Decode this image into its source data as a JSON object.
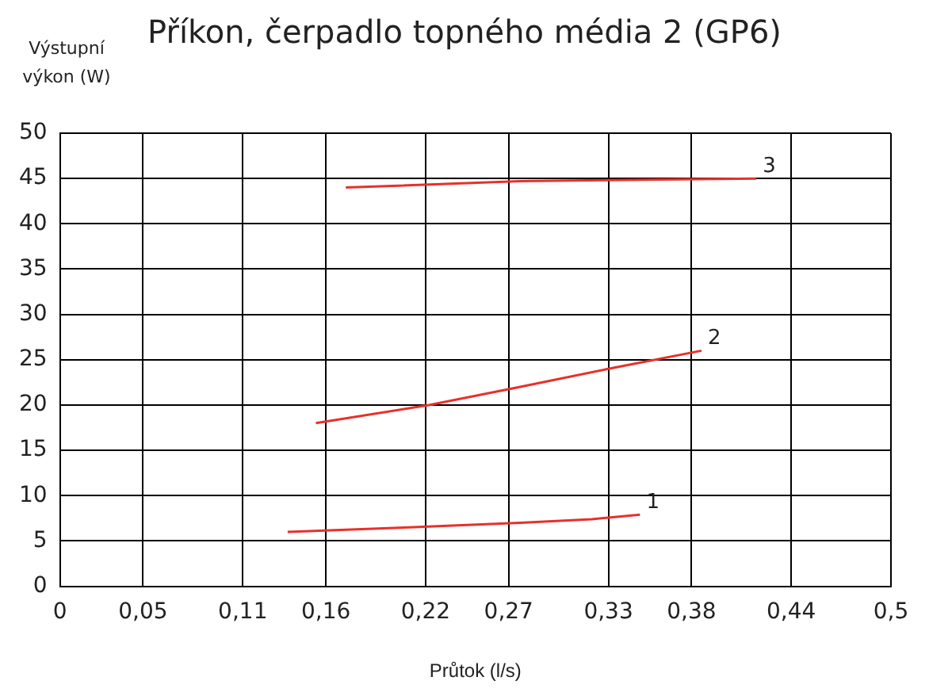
{
  "chart_data": {
    "type": "line",
    "title": "Příkon, čerpadlo topného média 2 (GP6)",
    "xlabel": "Průtok (l/s)",
    "ylabel": "Výstupní výkon (W)",
    "xlim": [
      0,
      0.5
    ],
    "xticks": [
      0,
      {
        "value": 0.05,
        "label": "0,05"
      },
      {
        "value": 0.11,
        "label": "0,11"
      },
      {
        "value": 0.16,
        "label": "0,16"
      },
      {
        "value": 0.22,
        "label": "0,22"
      },
      {
        "value": 0.27,
        "label": "0,27"
      },
      {
        "value": 0.33,
        "label": "0,33"
      },
      {
        "value": 0.38,
        "label": "0,38"
      },
      {
        "value": 0.44,
        "label": "0,44"
      },
      {
        "value": 0.5,
        "label": "0,5"
      }
    ],
    "ylim": [
      0,
      50
    ],
    "yticks": [
      0,
      5,
      10,
      15,
      20,
      25,
      30,
      35,
      40,
      45,
      50
    ],
    "grid": true,
    "marker": "none",
    "line_style": "solid",
    "series": [
      {
        "name": "1",
        "color": "#e8302a",
        "x": [
          0.137,
          0.21,
          0.277,
          0.32,
          0.349
        ],
        "values": [
          6,
          6.5,
          7,
          7.4,
          7.9
        ]
      },
      {
        "name": "2",
        "color": "#e8302a",
        "x": [
          0.154,
          0.222,
          0.277,
          0.33,
          0.386
        ],
        "values": [
          18,
          20,
          22,
          24,
          26
        ]
      },
      {
        "name": "3",
        "color": "#e8302a",
        "x": [
          0.172,
          0.277,
          0.419
        ],
        "values": [
          44,
          44.7,
          45
        ]
      }
    ]
  }
}
